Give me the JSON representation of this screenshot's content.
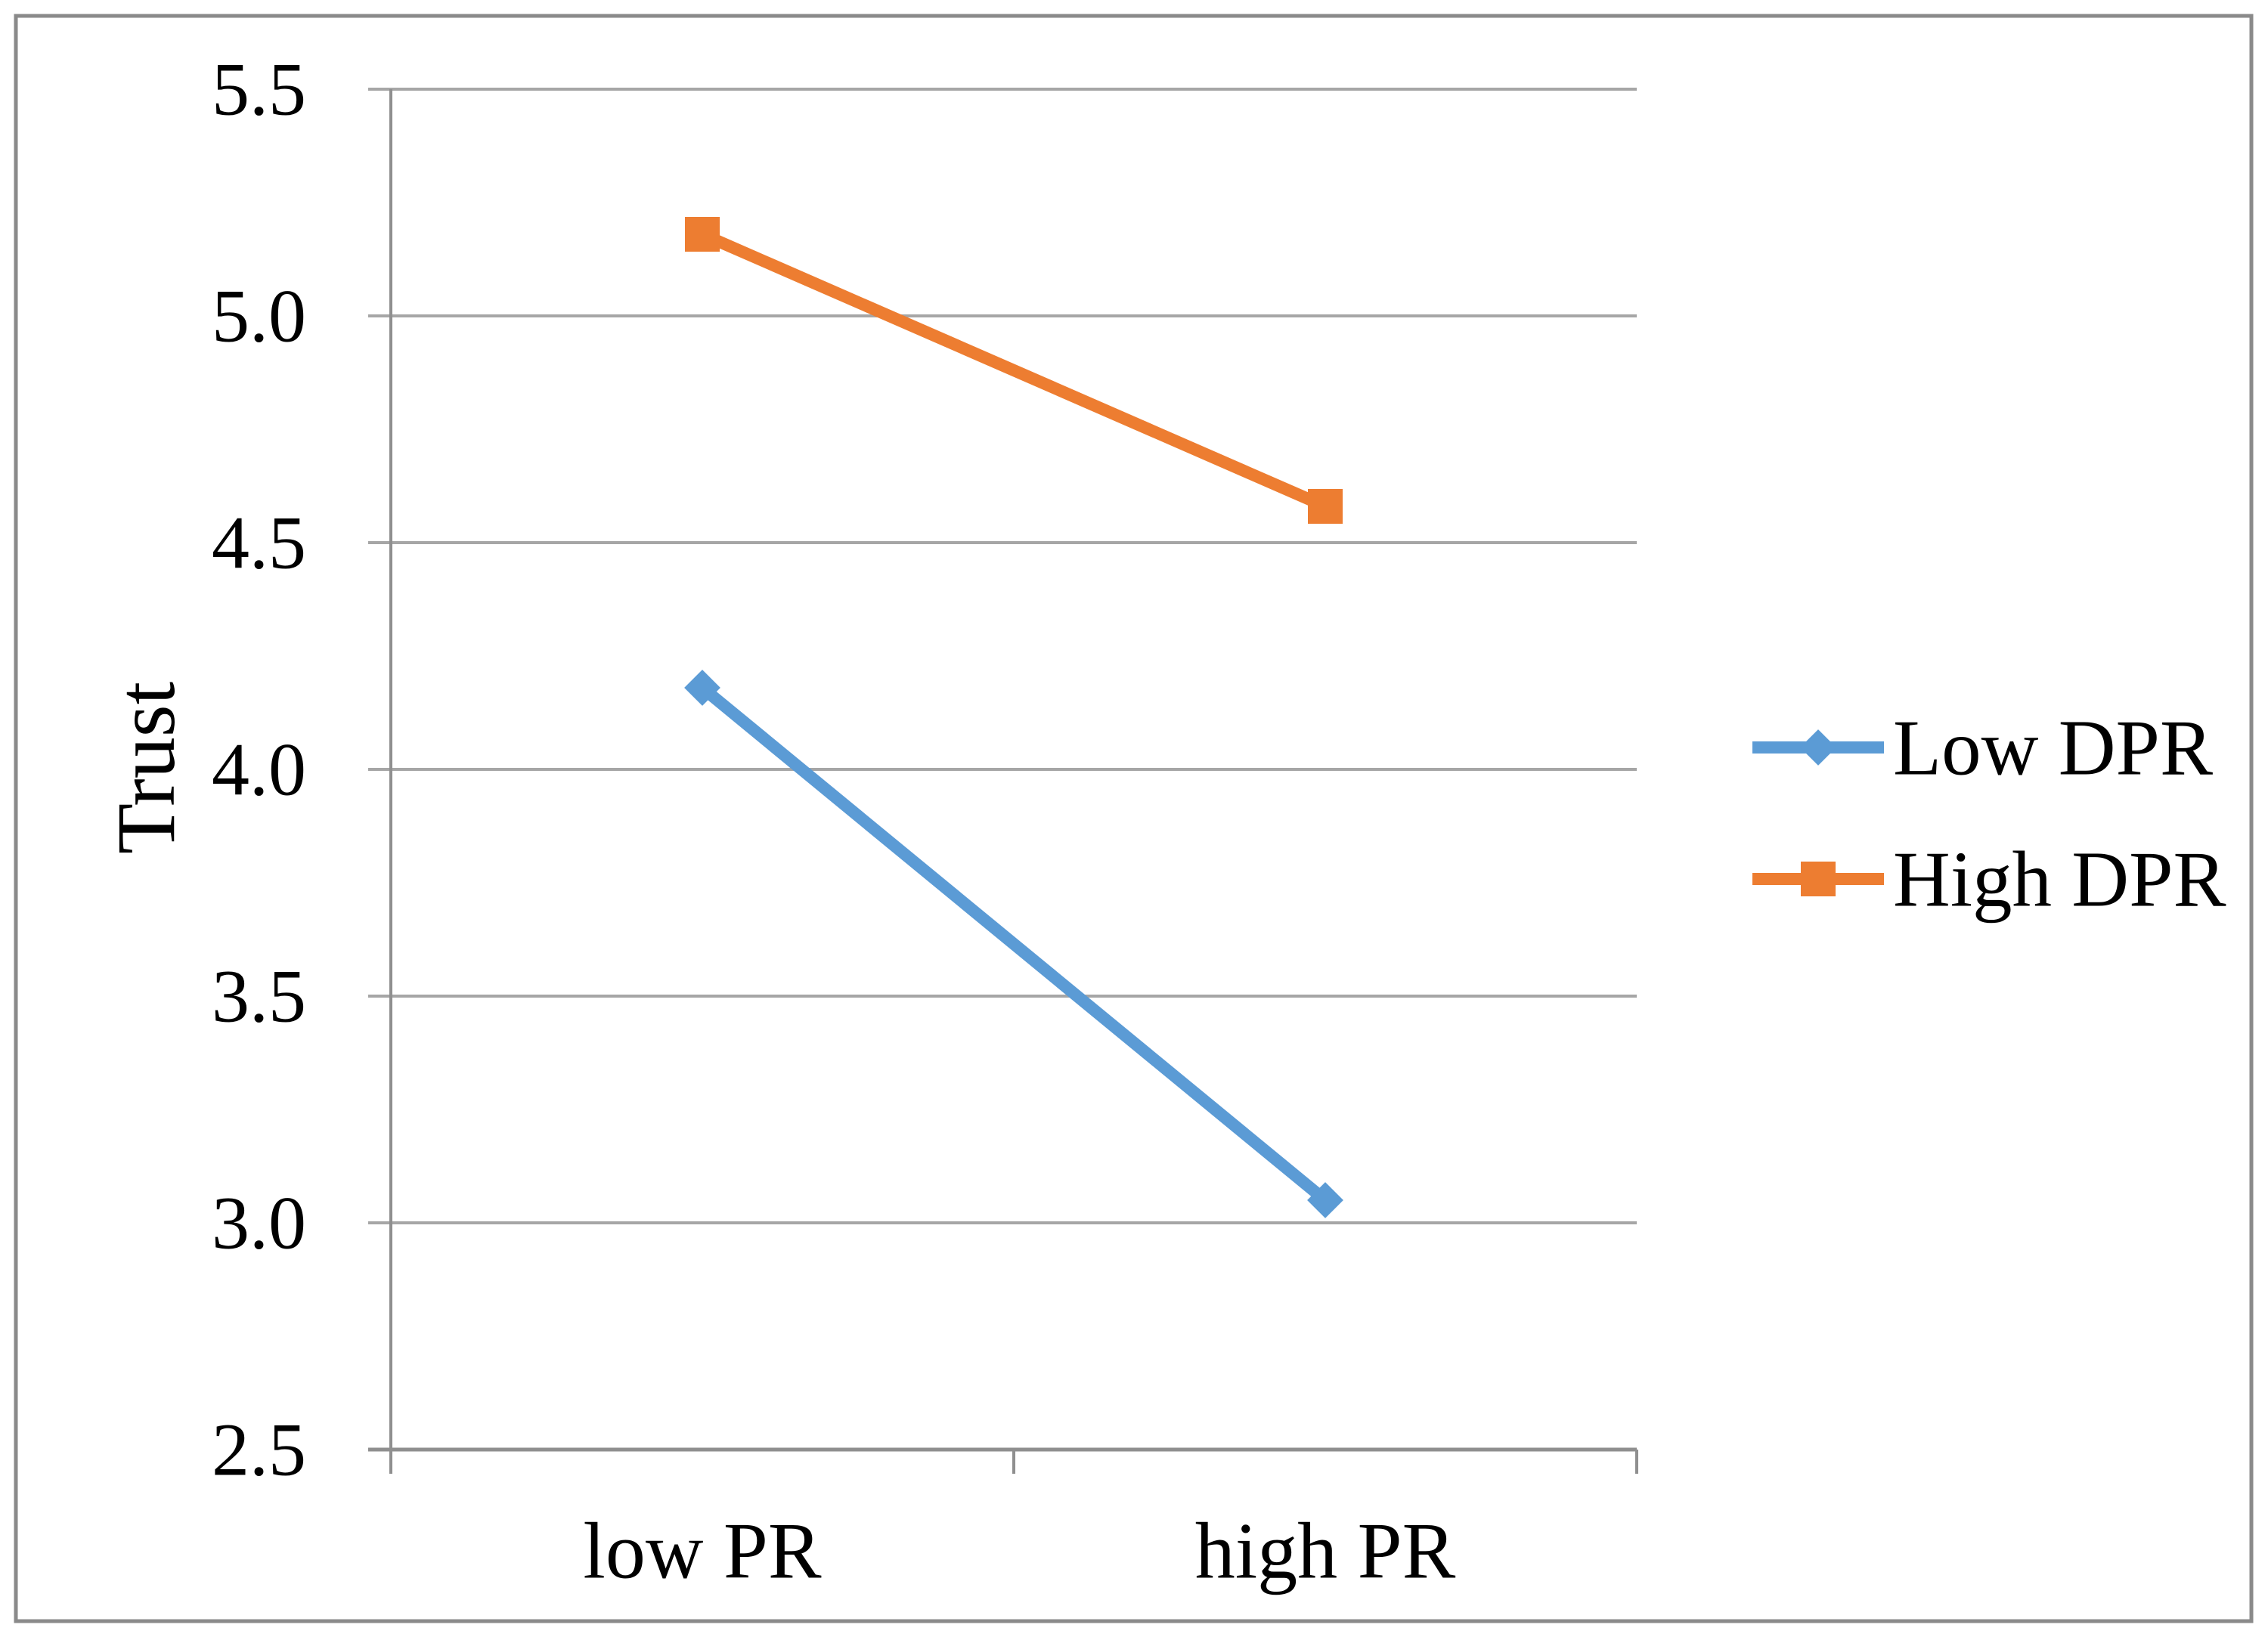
{
  "chart_data": {
    "type": "line",
    "title": "",
    "xlabel": "",
    "ylabel": "Trust",
    "categories": [
      "low PR",
      "high PR"
    ],
    "series": [
      {
        "name": "Low DPR",
        "values": [
          4.18,
          3.05
        ],
        "color": "#5B9BD5",
        "marker": "diamond"
      },
      {
        "name": "High DPR",
        "values": [
          5.18,
          4.58
        ],
        "color": "#ED7D31",
        "marker": "square"
      }
    ],
    "ylim": [
      2.5,
      5.5
    ],
    "ytick_step": 0.5,
    "ytick_labels": [
      "2.5",
      "3.0",
      "3.5",
      "4.0",
      "4.5",
      "5.0",
      "5.5"
    ],
    "grid": true,
    "legend_position": "right",
    "legend_entries": [
      "Low DPR",
      "High DPR"
    ]
  },
  "colors": {
    "background": "#FFFFFF",
    "gridline": "#A6A6A6",
    "axis": "#8F8F8F",
    "border": "#8A8A8A",
    "text": "#000000",
    "series_blue": "#5B9BD5",
    "series_orange": "#ED7D31"
  }
}
